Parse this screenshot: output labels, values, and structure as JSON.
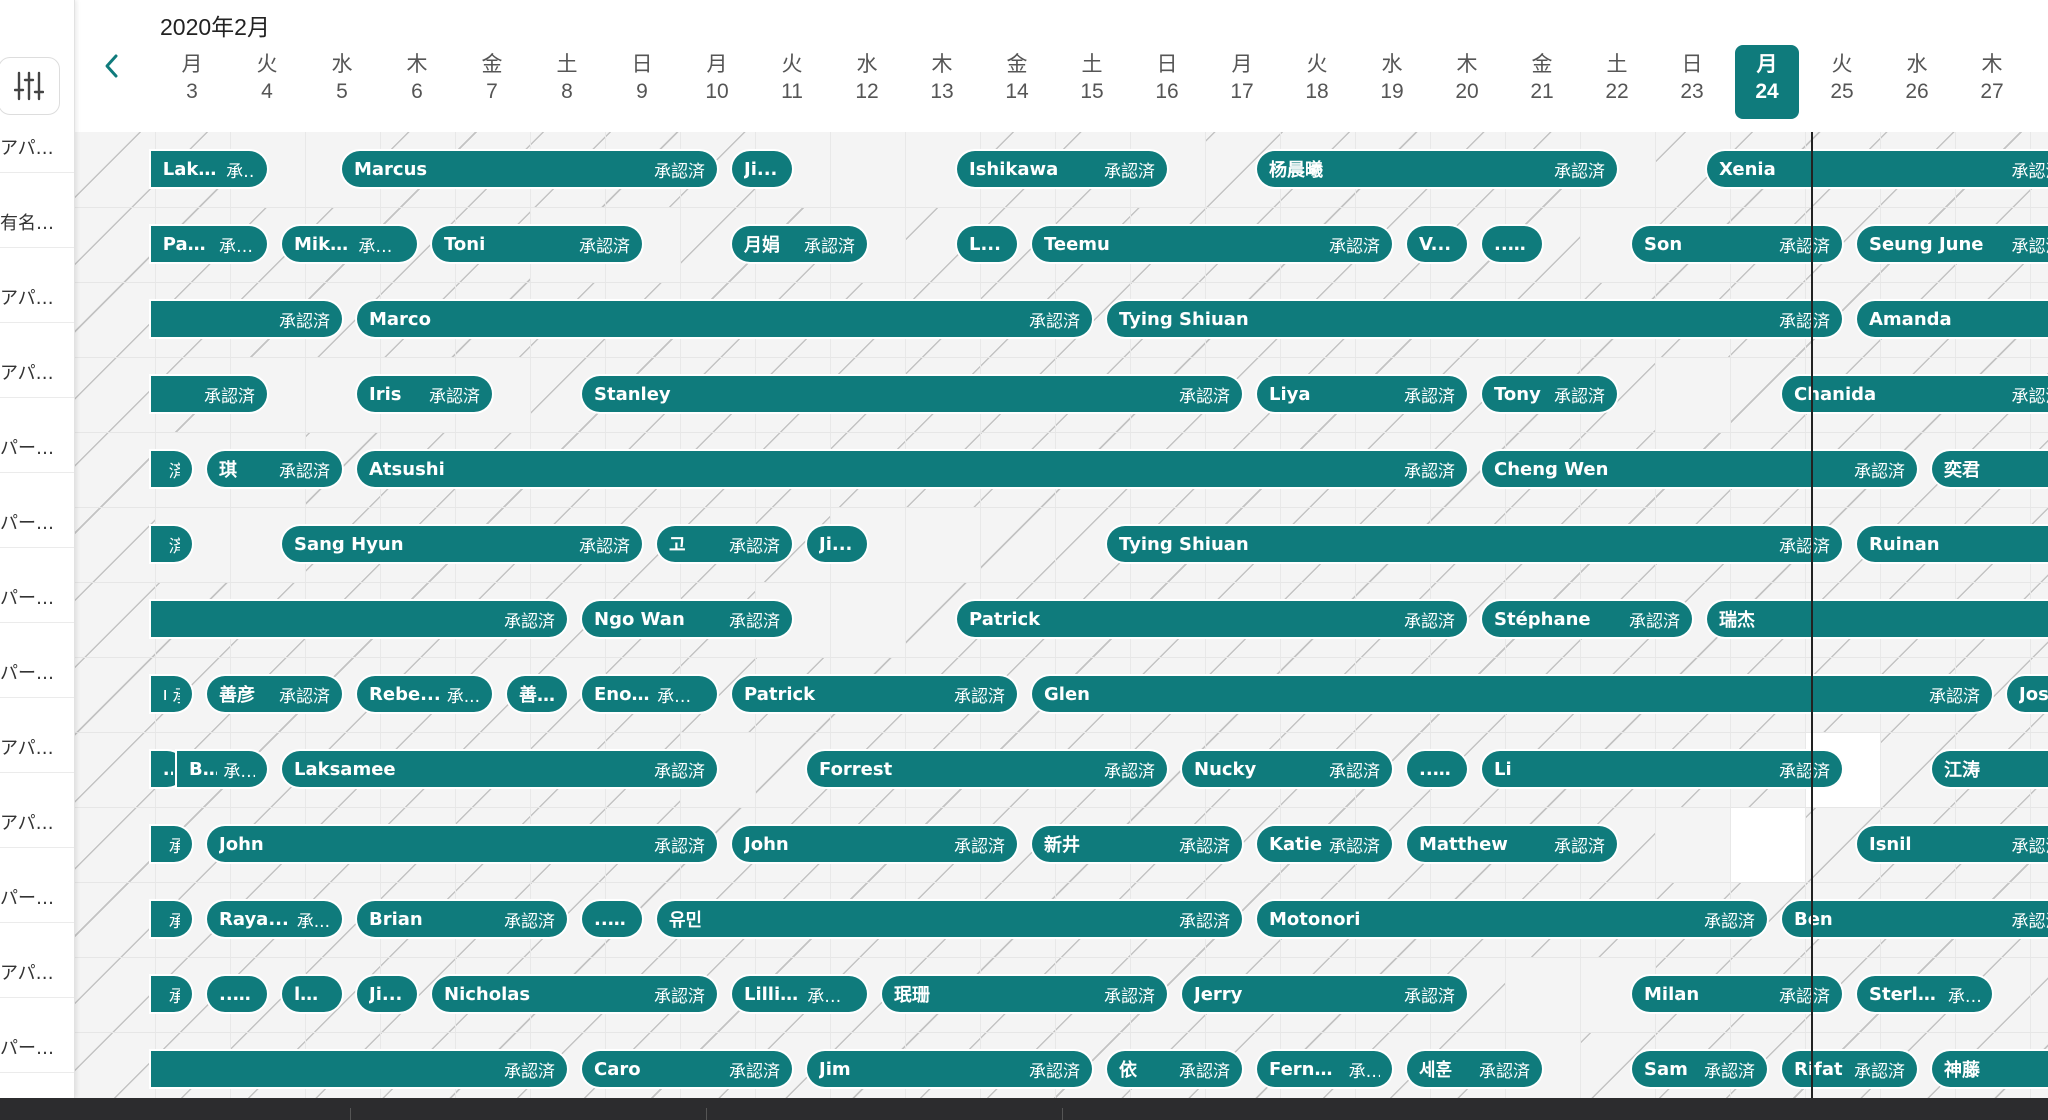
{
  "calendar": {
    "month_label": "2020年2月",
    "today_day": "24",
    "days": [
      {
        "wd": "月",
        "d": "3"
      },
      {
        "wd": "火",
        "d": "4"
      },
      {
        "wd": "水",
        "d": "5"
      },
      {
        "wd": "木",
        "d": "6"
      },
      {
        "wd": "金",
        "d": "7"
      },
      {
        "wd": "土",
        "d": "8"
      },
      {
        "wd": "日",
        "d": "9"
      },
      {
        "wd": "月",
        "d": "10"
      },
      {
        "wd": "火",
        "d": "11"
      },
      {
        "wd": "水",
        "d": "12"
      },
      {
        "wd": "木",
        "d": "13"
      },
      {
        "wd": "金",
        "d": "14"
      },
      {
        "wd": "土",
        "d": "15"
      },
      {
        "wd": "日",
        "d": "16"
      },
      {
        "wd": "月",
        "d": "17"
      },
      {
        "wd": "火",
        "d": "18"
      },
      {
        "wd": "水",
        "d": "19"
      },
      {
        "wd": "木",
        "d": "20"
      },
      {
        "wd": "金",
        "d": "21"
      },
      {
        "wd": "土",
        "d": "22"
      },
      {
        "wd": "日",
        "d": "23"
      },
      {
        "wd": "月",
        "d": "24"
      },
      {
        "wd": "火",
        "d": "25"
      },
      {
        "wd": "水",
        "d": "26"
      },
      {
        "wd": "木",
        "d": "27"
      }
    ]
  },
  "sidebar": {
    "listings": [
      "アパ…",
      "有名…",
      "アパ…",
      "アパ…",
      "パー…",
      "パー…",
      "パー…",
      "パー…",
      "アパ…",
      "アパ…",
      "パー…",
      "アパ…",
      "パー…"
    ]
  },
  "status_default": "承認済",
  "reservations": [
    [
      {
        "s": -0.55,
        "e": 1.0,
        "n": "Laksamee",
        "st": "承認済"
      },
      {
        "s": 2.0,
        "e": 7.0,
        "n": "Marcus",
        "st": "承認済"
      },
      {
        "s": 7.2,
        "e": 8.0,
        "n": "Ji...",
        "st": ""
      },
      {
        "s": 10.2,
        "e": 13.0,
        "n": "Ishikawa",
        "st": "承認済"
      },
      {
        "s": 14.2,
        "e": 19.0,
        "n": "杨晨曦",
        "st": "承認済"
      },
      {
        "s": 20.2,
        "e": 25.1,
        "n": "Xenia",
        "st": "承認済"
      }
    ],
    [
      {
        "s": -0.55,
        "e": 1.0,
        "n": "Patrick",
        "st": "承認済"
      },
      {
        "s": 1.2,
        "e": 3.0,
        "n": "Mikl...",
        "st": "承認..."
      },
      {
        "s": 3.2,
        "e": 6.0,
        "n": "Toni",
        "st": "承認済"
      },
      {
        "s": 7.2,
        "e": 9.0,
        "n": "月娟",
        "st": "承認済"
      },
      {
        "s": 10.2,
        "e": 11.0,
        "n": "L...",
        "st": ""
      },
      {
        "s": 11.2,
        "e": 16.0,
        "n": "Teemu",
        "st": "承認済"
      },
      {
        "s": 16.2,
        "e": 17.0,
        "n": "V...",
        "st": ""
      },
      {
        "s": 17.2,
        "e": 18.0,
        "n": "... ...",
        "st": ""
      },
      {
        "s": 19.2,
        "e": 22.0,
        "n": "Son",
        "st": "承認済"
      },
      {
        "s": 22.2,
        "e": 25.1,
        "n": "Seung June",
        "st": "承認済"
      }
    ],
    [
      {
        "s": -0.55,
        "e": 2.0,
        "n": "",
        "st": "承認済"
      },
      {
        "s": 2.2,
        "e": 12.0,
        "n": "Marco",
        "st": "承認済"
      },
      {
        "s": 12.2,
        "e": 22.0,
        "n": "Tying Shiuan",
        "st": "承認済"
      },
      {
        "s": 22.2,
        "e": 25.1,
        "n": "Amanda",
        "st": ""
      }
    ],
    [
      {
        "s": -0.55,
        "e": 1.0,
        "n": "",
        "st": "承認済"
      },
      {
        "s": 2.2,
        "e": 4.0,
        "n": "Iris",
        "st": "承認済"
      },
      {
        "s": 5.2,
        "e": 14.0,
        "n": "Stanley",
        "st": "承認済"
      },
      {
        "s": 14.2,
        "e": 17.0,
        "n": "Liya",
        "st": "承認済"
      },
      {
        "s": 17.2,
        "e": 19.0,
        "n": "Tony",
        "st": "承認済"
      },
      {
        "s": 21.2,
        "e": 25.1,
        "n": "Chanida",
        "st": "承認済"
      }
    ],
    [
      {
        "s": -0.55,
        "e": 0.0,
        "n": "",
        "st": "済"
      },
      {
        "s": 0.2,
        "e": 2.0,
        "n": "琪",
        "st": "承認済"
      },
      {
        "s": 2.2,
        "e": 17.0,
        "n": "Atsushi",
        "st": "承認済"
      },
      {
        "s": 17.2,
        "e": 23.0,
        "n": "Cheng Wen",
        "st": "承認済"
      },
      {
        "s": 23.2,
        "e": 25.1,
        "n": "奕君",
        "st": ""
      }
    ],
    [
      {
        "s": -0.55,
        "e": 0.0,
        "n": "",
        "st": "済"
      },
      {
        "s": 1.2,
        "e": 6.0,
        "n": "Sang Hyun",
        "st": "承認済"
      },
      {
        "s": 6.2,
        "e": 8.0,
        "n": "고",
        "st": "承認済"
      },
      {
        "s": 8.2,
        "e": 9.0,
        "n": "Ji...",
        "st": ""
      },
      {
        "s": 12.2,
        "e": 22.0,
        "n": "Tying Shiuan",
        "st": "承認済"
      },
      {
        "s": 22.2,
        "e": 25.1,
        "n": "Ruinan",
        "st": ""
      }
    ],
    [
      {
        "s": -0.55,
        "e": 5.0,
        "n": "",
        "st": "承認済"
      },
      {
        "s": 5.2,
        "e": 8.0,
        "n": "Ngo Wan",
        "st": "承認済"
      },
      {
        "s": 10.2,
        "e": 17.0,
        "n": "Patrick",
        "st": "承認済"
      },
      {
        "s": 17.2,
        "e": 20.0,
        "n": "Stéphane",
        "st": "承認済"
      },
      {
        "s": 20.2,
        "e": 25.1,
        "n": "瑞杰",
        "st": ""
      }
    ],
    [
      {
        "s": -0.55,
        "e": 0.0,
        "n": "na",
        "st": "承認済"
      },
      {
        "s": 0.2,
        "e": 2.0,
        "n": "善彦",
        "st": "承認済"
      },
      {
        "s": 2.2,
        "e": 4.0,
        "n": "Rebe...",
        "st": "承..."
      },
      {
        "s": 4.2,
        "e": 5.0,
        "n": "善...",
        "st": ""
      },
      {
        "s": 5.2,
        "e": 7.0,
        "n": "Enoch",
        "st": "承認済"
      },
      {
        "s": 7.2,
        "e": 11.0,
        "n": "Patrick",
        "st": "承認済"
      },
      {
        "s": 11.2,
        "e": 24.0,
        "n": "Glen",
        "st": "承認済"
      },
      {
        "s": 24.2,
        "e": 25.1,
        "n": "Jose",
        "st": ""
      }
    ],
    [
      {
        "s": -0.55,
        "e": -0.3,
        "n": "...",
        "st": ""
      },
      {
        "s": -0.2,
        "e": 1.0,
        "n": "Bing",
        "st": "承認済"
      },
      {
        "s": 1.2,
        "e": 7.0,
        "n": "Laksamee",
        "st": "承認済"
      },
      {
        "s": 8.2,
        "e": 13.0,
        "n": "Forrest",
        "st": "承認済"
      },
      {
        "s": 13.2,
        "e": 16.0,
        "n": "Nucky",
        "st": "承認済"
      },
      {
        "s": 16.2,
        "e": 17.0,
        "n": "... ...",
        "st": ""
      },
      {
        "s": 17.2,
        "e": 22.0,
        "n": "Li",
        "st": "承認済"
      },
      {
        "s": 23.2,
        "e": 25.1,
        "n": "江涛",
        "st": ""
      }
    ],
    [
      {
        "s": -0.55,
        "e": 0.0,
        "n": "",
        "st": "承認済"
      },
      {
        "s": 0.2,
        "e": 7.0,
        "n": "John",
        "st": "承認済"
      },
      {
        "s": 7.2,
        "e": 11.0,
        "n": "John",
        "st": "承認済"
      },
      {
        "s": 11.2,
        "e": 14.0,
        "n": "新井",
        "st": "承認済"
      },
      {
        "s": 14.2,
        "e": 16.0,
        "n": "Katie",
        "st": "承認済"
      },
      {
        "s": 16.2,
        "e": 19.0,
        "n": "Matthew",
        "st": "承認済"
      },
      {
        "s": 22.2,
        "e": 25.1,
        "n": "Isnil",
        "st": "承認済"
      }
    ],
    [
      {
        "s": -0.55,
        "e": 0.0,
        "n": "",
        "st": "承認済"
      },
      {
        "s": 0.2,
        "e": 2.0,
        "n": "Raya...",
        "st": "承..."
      },
      {
        "s": 2.2,
        "e": 5.0,
        "n": "Brian",
        "st": "承認済"
      },
      {
        "s": 5.2,
        "e": 6.0,
        "n": "... ...",
        "st": ""
      },
      {
        "s": 6.2,
        "e": 14.0,
        "n": "유민",
        "st": "承認済"
      },
      {
        "s": 14.2,
        "e": 21.0,
        "n": "Motonori",
        "st": "承認済"
      },
      {
        "s": 21.2,
        "e": 25.1,
        "n": "Ben",
        "st": "承認済"
      }
    ],
    [
      {
        "s": -0.55,
        "e": 0.0,
        "n": "",
        "st": "承認済"
      },
      {
        "s": 0.2,
        "e": 1.0,
        "n": "... ...",
        "st": ""
      },
      {
        "s": 1.2,
        "e": 2.0,
        "n": "la...",
        "st": ""
      },
      {
        "s": 2.2,
        "e": 3.0,
        "n": "Ji...",
        "st": ""
      },
      {
        "s": 3.2,
        "e": 7.0,
        "n": "Nicholas",
        "st": "承認済"
      },
      {
        "s": 7.2,
        "e": 9.0,
        "n": "Lillian",
        "st": "承認済"
      },
      {
        "s": 9.2,
        "e": 13.0,
        "n": "珉珊",
        "st": "承認済"
      },
      {
        "s": 13.2,
        "e": 17.0,
        "n": "Jerry",
        "st": "承認済"
      },
      {
        "s": 19.2,
        "e": 22.0,
        "n": "Milan",
        "st": "承認済"
      },
      {
        "s": 22.2,
        "e": 24.0,
        "n": "Sterli...",
        "st": "承..."
      }
    ],
    [
      {
        "s": -0.55,
        "e": 5.0,
        "n": "",
        "st": "承認済"
      },
      {
        "s": 5.2,
        "e": 8.0,
        "n": "Caro",
        "st": "承認済"
      },
      {
        "s": 8.2,
        "e": 12.0,
        "n": "Jim",
        "st": "承認済"
      },
      {
        "s": 12.2,
        "e": 14.0,
        "n": "依",
        "st": "承認済"
      },
      {
        "s": 14.2,
        "e": 16.0,
        "n": "Ferna...",
        "st": "承..."
      },
      {
        "s": 16.2,
        "e": 18.0,
        "n": "세훈",
        "st": "承認済"
      },
      {
        "s": 19.2,
        "e": 21.0,
        "n": "Sam",
        "st": "承認済"
      },
      {
        "s": 21.2,
        "e": 23.0,
        "n": "Rifat",
        "st": "承認済"
      },
      {
        "s": 23.2,
        "e": 25.1,
        "n": "神藤",
        "st": ""
      }
    ]
  ],
  "available_days": [
    [
      1,
      2,
      8,
      9,
      10,
      13,
      19
    ],
    [
      5,
      6,
      9,
      19
    ],
    [],
    [
      1,
      2,
      3,
      4,
      20
    ],
    [
      0,
      1
    ],
    [
      0,
      1,
      9,
      10
    ],
    [
      8,
      9
    ],
    [],
    [
      7,
      22
    ],
    [
      20,
      21
    ],
    [],
    [
      18,
      19
    ],
    [
      18
    ]
  ],
  "white_cells": [
    [
      8,
      22
    ],
    [
      9,
      21
    ]
  ],
  "colors": {
    "accent": "#0f7b7c",
    "hatch": "#c3c3c3",
    "cell": "#f4f4f4"
  }
}
